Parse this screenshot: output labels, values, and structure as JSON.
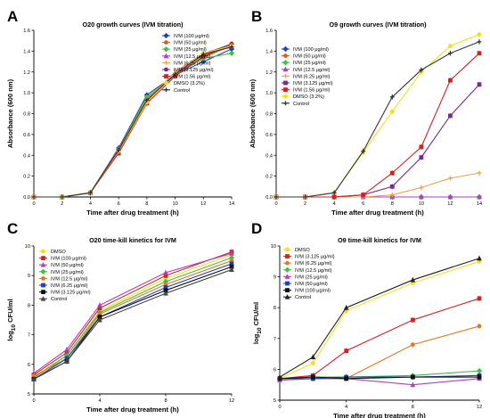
{
  "panels": [
    {
      "letter": "A",
      "chart_data": {
        "type": "line",
        "title": "O20 growth curves (IVM titration)",
        "xlabel": "Time after drug treatment (h)",
        "ylabel": "Absorbance (600 nm)",
        "xlim": [
          0,
          14
        ],
        "ylim": [
          0,
          1.6
        ],
        "xticks": [
          0,
          2,
          4,
          6,
          8,
          10,
          12,
          14
        ],
        "yticks": [
          0.0,
          0.2,
          0.4,
          0.6,
          0.8,
          1.0,
          1.2,
          1.4,
          1.6
        ],
        "ytick_decimals": 1,
        "grid": false,
        "legend_position": "top-right",
        "x": [
          0,
          2,
          4,
          6,
          8,
          10,
          12,
          14
        ],
        "series": [
          {
            "name": "IVM (100 μg/ml)",
            "color": "#1f3fbf",
            "marker": "diamond",
            "values": [
              0,
              0,
              0.04,
              0.47,
              0.98,
              1.17,
              1.3,
              1.42
            ]
          },
          {
            "name": "IVM (50 μg/ml)",
            "color": "#e05a1a",
            "marker": "circle",
            "values": [
              0,
              0,
              0.04,
              0.45,
              0.95,
              1.18,
              1.34,
              1.45
            ]
          },
          {
            "name": "IVM (25 μg/ml)",
            "color": "#3fbf3f",
            "marker": "diamond",
            "values": [
              0,
              0,
              0.04,
              0.46,
              0.96,
              1.17,
              1.33,
              1.38
            ]
          },
          {
            "name": "IVM (12.5 μg/ml)",
            "color": "#b03fbf",
            "marker": "triangle",
            "values": [
              0,
              0,
              0.04,
              0.46,
              0.93,
              1.2,
              1.38,
              1.46
            ]
          },
          {
            "name": "IVM (6.25 μg/ml)",
            "color": "#f2a04a",
            "marker": "plus",
            "values": [
              0,
              0,
              0.04,
              0.45,
              0.94,
              1.19,
              1.36,
              1.44
            ]
          },
          {
            "name": "IVM (3.125 μg/ml)",
            "color": "#7a2a8c",
            "marker": "circle",
            "values": [
              0,
              0,
              0.04,
              0.44,
              0.92,
              1.18,
              1.37,
              1.47
            ]
          },
          {
            "name": "IVM (1.56 μg/ml)",
            "color": "#d62020",
            "marker": "square",
            "values": [
              0,
              0,
              0.04,
              0.42,
              0.9,
              1.16,
              1.35,
              1.46
            ]
          },
          {
            "name": "DMSO (3.2%)",
            "color": "#f0e020",
            "marker": "circle",
            "values": [
              0,
              0,
              0.04,
              0.44,
              0.91,
              1.19,
              1.38,
              1.45
            ]
          },
          {
            "name": "Control",
            "color": "#333333",
            "marker": "plus",
            "values": [
              0,
              0,
              0.04,
              0.45,
              0.93,
              1.18,
              1.37,
              1.44
            ]
          }
        ]
      }
    },
    {
      "letter": "B",
      "chart_data": {
        "type": "line",
        "title": "O9 growth curves (IVM titration)",
        "xlabel": "Time after drug treatment (h)",
        "ylabel": "Absorbance (600 nm)",
        "xlim": [
          0,
          14
        ],
        "ylim": [
          0,
          1.6
        ],
        "xticks": [
          0,
          2,
          4,
          6,
          8,
          10,
          12,
          14
        ],
        "yticks": [
          0.0,
          0.2,
          0.4,
          0.6,
          0.8,
          1.0,
          1.2,
          1.4,
          1.6
        ],
        "ytick_decimals": 1,
        "grid": false,
        "legend_position": "top-left",
        "x": [
          0,
          2,
          4,
          6,
          8,
          10,
          12,
          14
        ],
        "series": [
          {
            "name": "IVM (100 μg/ml)",
            "color": "#1f3fbf",
            "marker": "diamond",
            "values": [
              0,
              0,
              0,
              0,
              0,
              0,
              0,
              0
            ]
          },
          {
            "name": "IVM (50 μg/ml)",
            "color": "#e05a1a",
            "marker": "circle",
            "values": [
              0,
              0,
              0,
              0,
              0,
              0,
              0,
              0
            ]
          },
          {
            "name": "IVM (25 μg/ml)",
            "color": "#3fbf3f",
            "marker": "diamond",
            "values": [
              0,
              0,
              0,
              0,
              0,
              0,
              0,
              0
            ]
          },
          {
            "name": "IVM (12.5 μg/ml)",
            "color": "#b03fbf",
            "marker": "triangle",
            "values": [
              0,
              0,
              0,
              0,
              0,
              0,
              0,
              0
            ]
          },
          {
            "name": "IVM (6.25 μg/ml)",
            "color": "#f2a04a",
            "marker": "plus",
            "values": [
              0,
              0,
              0,
              0,
              0.02,
              0.09,
              0.18,
              0.23
            ]
          },
          {
            "name": "IVM (3.125 μg/ml)",
            "color": "#7a2a8c",
            "marker": "square",
            "values": [
              0,
              0,
              0,
              0.02,
              0.1,
              0.38,
              0.78,
              1.08
            ]
          },
          {
            "name": "IVM (1.56 μg/ml)",
            "color": "#d62020",
            "marker": "square",
            "values": [
              0,
              0,
              0,
              0.02,
              0.23,
              0.48,
              1.12,
              1.38
            ]
          },
          {
            "name": "DMSO (3.2%)",
            "color": "#f0e020",
            "marker": "circle",
            "values": [
              0,
              0,
              0.04,
              0.43,
              0.82,
              1.2,
              1.45,
              1.56
            ]
          },
          {
            "name": "Control",
            "color": "#333333",
            "marker": "plus",
            "values": [
              0,
              0,
              0.04,
              0.44,
              0.96,
              1.22,
              1.38,
              1.49
            ]
          }
        ]
      }
    },
    {
      "letter": "C",
      "chart_data": {
        "type": "line",
        "title": "O20 time-kill kinetics for IVM",
        "xlabel": "Time after drug treatment (h)",
        "ylabel_prefix": "log",
        "ylabel_sub": "10",
        "ylabel_suffix": " CFU/ml",
        "xlim": [
          0,
          12
        ],
        "ylim": [
          5,
          10
        ],
        "xticks": [
          0,
          4,
          8,
          12
        ],
        "yticks": [
          5,
          6,
          7,
          8,
          9,
          10
        ],
        "ytick_decimals": 0,
        "grid": false,
        "legend_position": "top-left",
        "x": [
          0,
          2,
          4,
          8,
          12
        ],
        "series": [
          {
            "name": "DMSO",
            "color": "#f0e020",
            "marker": "circle",
            "values": [
              5.6,
              6.3,
              7.8,
              8.9,
              9.7
            ]
          },
          {
            "name": "IVM (100 μg/ml)",
            "color": "#d62020",
            "marker": "square",
            "values": [
              5.65,
              6.4,
              7.9,
              9.0,
              9.8
            ]
          },
          {
            "name": "IVM (50 μg/ml)",
            "color": "#b03fbf",
            "marker": "triangle",
            "values": [
              5.7,
              6.5,
              8.0,
              9.1,
              9.75
            ]
          },
          {
            "name": "IVM (25 μg/ml)",
            "color": "#3fbf3f",
            "marker": "diamond",
            "values": [
              5.55,
              6.3,
              7.75,
              8.8,
              9.6
            ]
          },
          {
            "name": "IVM (12.5 μg/ml)",
            "color": "#e07a1a",
            "marker": "circle",
            "values": [
              5.6,
              6.2,
              7.7,
              8.7,
              9.5
            ]
          },
          {
            "name": "IVM (6.25 μg/ml)",
            "color": "#1f3fbf",
            "marker": "square",
            "values": [
              5.5,
              6.2,
              7.6,
              8.6,
              9.4
            ]
          },
          {
            "name": "IVM (3.125 μg/ml)",
            "color": "#111111",
            "marker": "square",
            "values": [
              5.5,
              6.1,
              7.6,
              8.5,
              9.3
            ]
          },
          {
            "name": "Control",
            "color": "#444444",
            "marker": "triangle",
            "values": [
              5.5,
              6.1,
              7.5,
              8.4,
              9.2
            ]
          }
        ]
      }
    },
    {
      "letter": "D",
      "chart_data": {
        "type": "line",
        "title": "O9 time-kill kinetics for IVM",
        "xlabel": "Time after drug treatment (h)",
        "ylabel_prefix": "log",
        "ylabel_sub": "10",
        "ylabel_suffix": " CFU/ml",
        "xlim": [
          0,
          12
        ],
        "ylim": [
          5,
          10
        ],
        "xticks": [
          0,
          4,
          8,
          12
        ],
        "yticks": [
          5,
          6,
          7,
          8,
          9,
          10
        ],
        "ytick_decimals": 0,
        "grid": false,
        "legend_position": "top-left",
        "x": [
          0,
          2,
          4,
          8,
          12
        ],
        "series": [
          {
            "name": "DMSO",
            "color": "#f0e020",
            "marker": "circle",
            "values": [
              5.7,
              6.2,
              7.9,
              8.8,
              9.5
            ]
          },
          {
            "name": "IVM (3.125 μg/ml)",
            "color": "#d62020",
            "marker": "square",
            "values": [
              5.7,
              5.8,
              6.6,
              7.6,
              8.3
            ]
          },
          {
            "name": "IVM (6.25 μg/ml)",
            "color": "#e07a1a",
            "marker": "circle",
            "values": [
              5.65,
              5.7,
              5.7,
              6.8,
              7.4
            ]
          },
          {
            "name": "IVM (12.5 μg/ml)",
            "color": "#3fbf3f",
            "marker": "diamond",
            "values": [
              5.7,
              5.75,
              5.75,
              5.8,
              5.95
            ]
          },
          {
            "name": "IVM (25 μg/ml)",
            "color": "#b03fbf",
            "marker": "triangle",
            "values": [
              5.65,
              5.7,
              5.7,
              5.5,
              5.7
            ]
          },
          {
            "name": "IVM (50 μg/ml)",
            "color": "#1f3fbf",
            "marker": "square",
            "values": [
              5.7,
              5.7,
              5.75,
              5.75,
              5.8
            ]
          },
          {
            "name": "IVM (100 μg/ml)",
            "color": "#111111",
            "marker": "square",
            "values": [
              5.7,
              5.75,
              5.7,
              5.75,
              5.75
            ]
          },
          {
            "name": "Control",
            "color": "#222222",
            "marker": "triangle",
            "values": [
              5.75,
              6.4,
              8.0,
              8.9,
              9.6
            ]
          }
        ]
      }
    }
  ]
}
